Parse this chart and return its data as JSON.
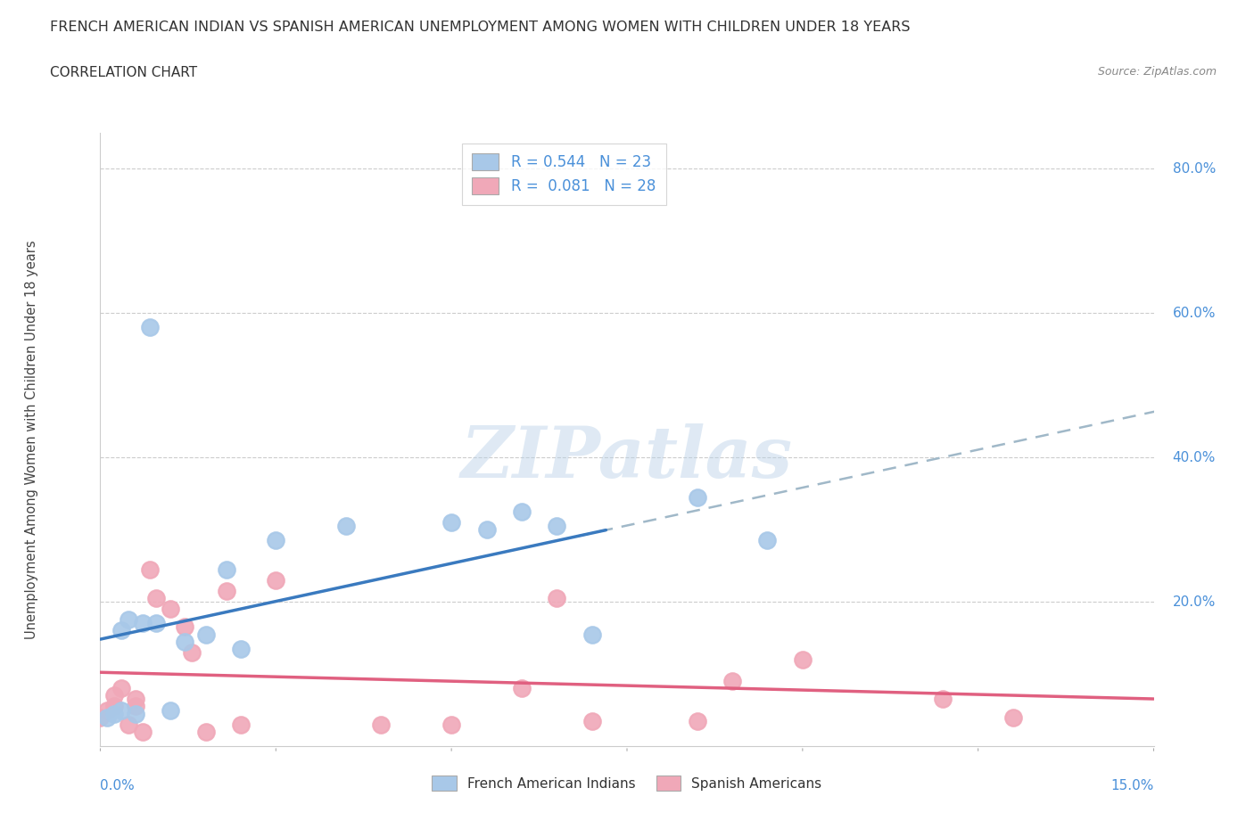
{
  "title": "FRENCH AMERICAN INDIAN VS SPANISH AMERICAN UNEMPLOYMENT AMONG WOMEN WITH CHILDREN UNDER 18 YEARS",
  "subtitle": "CORRELATION CHART",
  "source": "Source: ZipAtlas.com",
  "watermark": "ZIPatlas",
  "legend1_label": "R = 0.544   N = 23",
  "legend2_label": "R =  0.081   N = 28",
  "legend_title1": "French American Indians",
  "legend_title2": "Spanish Americans",
  "color_blue": "#a8c8e8",
  "color_pink": "#f0a8b8",
  "color_trendline_blue": "#3a7abf",
  "color_trendline_pink": "#e06080",
  "color_trendline_dashed": "#a0b8c8",
  "french_x": [
    0.001,
    0.002,
    0.003,
    0.003,
    0.004,
    0.005,
    0.006,
    0.007,
    0.008,
    0.01,
    0.012,
    0.015,
    0.018,
    0.02,
    0.025,
    0.035,
    0.05,
    0.055,
    0.06,
    0.065,
    0.07,
    0.085,
    0.095
  ],
  "french_y": [
    0.04,
    0.045,
    0.05,
    0.16,
    0.175,
    0.045,
    0.17,
    0.58,
    0.17,
    0.05,
    0.145,
    0.155,
    0.245,
    0.135,
    0.285,
    0.305,
    0.31,
    0.3,
    0.325,
    0.305,
    0.155,
    0.345,
    0.285
  ],
  "spanish_x": [
    0.0,
    0.001,
    0.002,
    0.002,
    0.003,
    0.004,
    0.005,
    0.005,
    0.006,
    0.007,
    0.008,
    0.01,
    0.012,
    0.013,
    0.015,
    0.018,
    0.02,
    0.025,
    0.04,
    0.05,
    0.06,
    0.065,
    0.07,
    0.085,
    0.09,
    0.1,
    0.12,
    0.13
  ],
  "spanish_y": [
    0.04,
    0.05,
    0.055,
    0.07,
    0.08,
    0.03,
    0.055,
    0.065,
    0.02,
    0.245,
    0.205,
    0.19,
    0.165,
    0.13,
    0.02,
    0.215,
    0.03,
    0.23,
    0.03,
    0.03,
    0.08,
    0.205,
    0.035,
    0.035,
    0.09,
    0.12,
    0.065,
    0.04
  ],
  "xmin": 0.0,
  "xmax": 0.15,
  "ymin": 0.0,
  "ymax": 0.85,
  "ytick_positions": [
    0.2,
    0.4,
    0.6,
    0.8
  ],
  "ytick_labels": [
    "20.0%",
    "40.0%",
    "60.0%",
    "80.0%"
  ],
  "bg_color": "#ffffff",
  "plot_bg_color": "#ffffff",
  "grid_color": "#cccccc"
}
